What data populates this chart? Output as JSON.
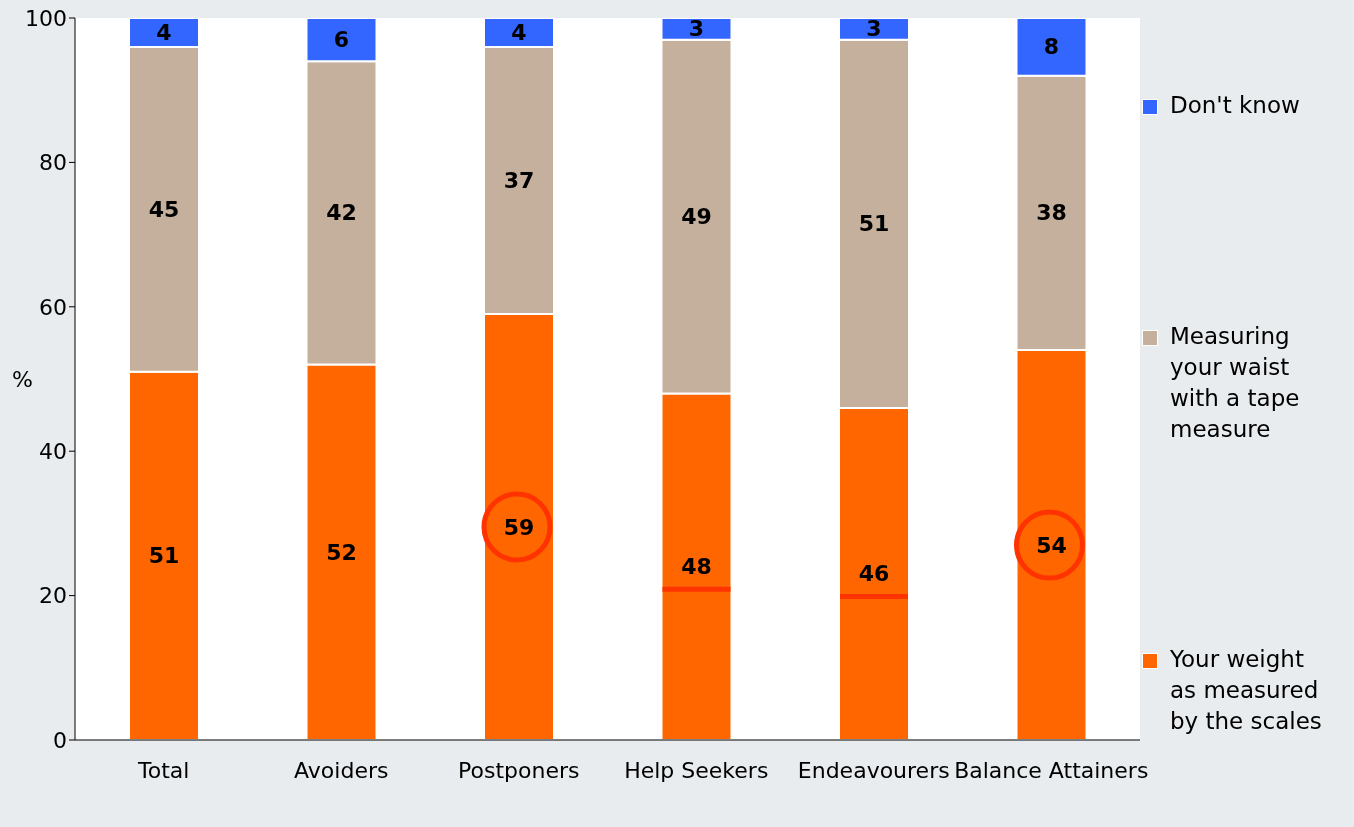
{
  "chart_data": {
    "type": "bar",
    "stacked": true,
    "ylabel": "%",
    "categories": [
      "Total",
      "Avoiders",
      "Postponers",
      "Help Seekers",
      "Endeavourers",
      "Balance Attainers"
    ],
    "series": [
      {
        "name": "Your weight as measured by the scales",
        "color": "#ff6600",
        "values": [
          51,
          52,
          59,
          48,
          46,
          54
        ]
      },
      {
        "name": "Measuring your waist with a tape measure",
        "color": "#c4b09c",
        "values": [
          45,
          42,
          37,
          49,
          51,
          38
        ]
      },
      {
        "name": "Don't know",
        "color": "#3366ff",
        "values": [
          4,
          6,
          4,
          3,
          3,
          8
        ]
      }
    ],
    "ylim": [
      0,
      100
    ],
    "yticks": [
      0,
      20,
      40,
      60,
      80,
      100
    ],
    "data_labels": true,
    "grid": false,
    "legend": "right"
  }
}
